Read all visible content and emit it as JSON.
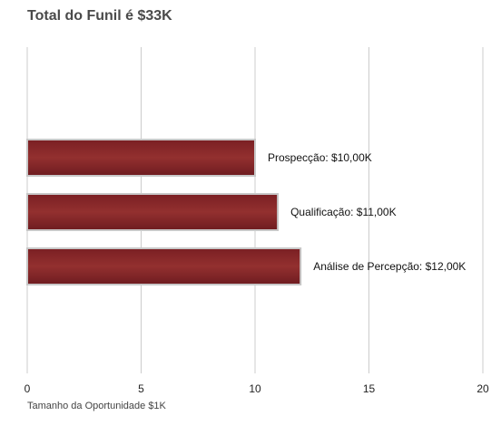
{
  "chart_data": {
    "type": "bar",
    "orientation": "horizontal",
    "title": "Total do Funil é $33K",
    "xlabel": "Tamanho da Oportunidade $1K",
    "ylabel": "",
    "xlim": [
      0,
      20
    ],
    "xticks": [
      0,
      5,
      10,
      15,
      20
    ],
    "grid": true,
    "categories": [
      "Prospecção",
      "Qualificação",
      "Análise de Percepção"
    ],
    "values": [
      10,
      11,
      12
    ],
    "data_labels": [
      "Prospecção: $10,00K",
      "Qualificação: $11,00K",
      "Análise de Percepção: $12,00K"
    ],
    "colors": {
      "bar": "#8b2a2e",
      "bar_edge": "#c8c8c8",
      "grid": "#cccccc"
    }
  }
}
